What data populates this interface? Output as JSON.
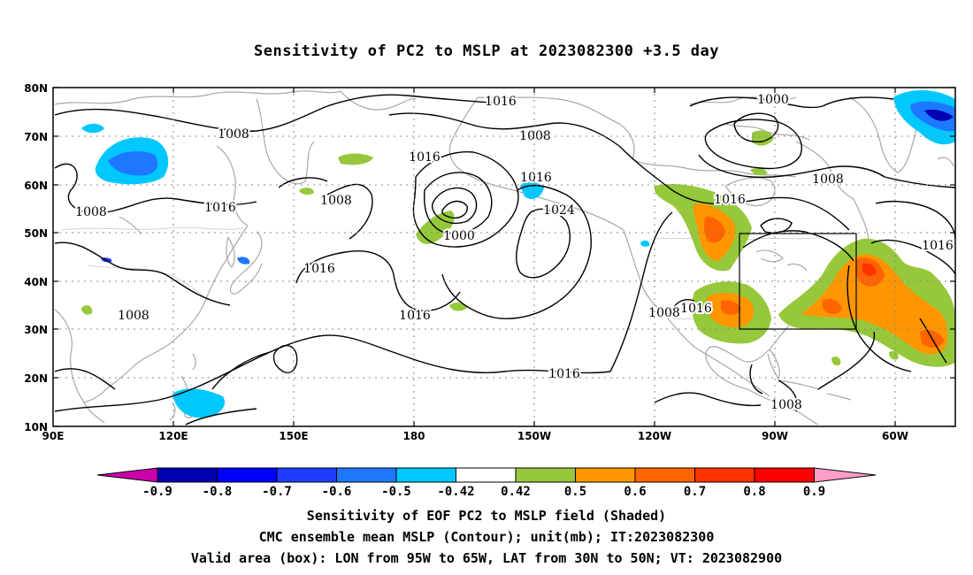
{
  "title": "Sensitivity of PC2 to MSLP at 2023082300 +3.5 day",
  "map": {
    "lat_labels": [
      "80N",
      "70N",
      "60N",
      "50N",
      "40N",
      "30N",
      "20N",
      "10N"
    ],
    "lon_labels": [
      "90E",
      "120E",
      "150E",
      "180",
      "150W",
      "120W",
      "90W",
      "60W"
    ],
    "contour_labels": [
      "1016",
      "1008",
      "1000",
      "1008",
      "1016",
      "1008",
      "1016",
      "1024",
      "1008",
      "1016",
      "1000",
      "1008",
      "1016",
      "1016",
      "1016",
      "1008",
      "1008",
      "1016",
      "1016",
      "1008"
    ],
    "valid_box": {
      "lon_min": "95W",
      "lon_max": "65W",
      "lat_min": "30N",
      "lat_max": "50N"
    }
  },
  "colorbar": {
    "colors": [
      "#cc00aa",
      "#0000b0",
      "#0000ff",
      "#1e3cff",
      "#1e78ff",
      "#00c8ff",
      "#ffffff",
      "#96c83c",
      "#ff9600",
      "#ff6400",
      "#ff3200",
      "#ff0000",
      "#ff9ec8"
    ],
    "labels": [
      "-0.9",
      "-0.8",
      "-0.7",
      "-0.6",
      "-0.5",
      "-0.42",
      "0.42",
      "0.5",
      "0.6",
      "0.7",
      "0.8",
      "0.9"
    ]
  },
  "captions": {
    "line1": "Sensitivity of EOF PC2 to MSLP field (Shaded)",
    "line2": "CMC ensemble mean MSLP (Contour); unit(mb); IT:2023082300",
    "line3": "Valid area (box): LON from 95W to 65W, LAT from 30N to 50N; VT: 2023082900"
  }
}
